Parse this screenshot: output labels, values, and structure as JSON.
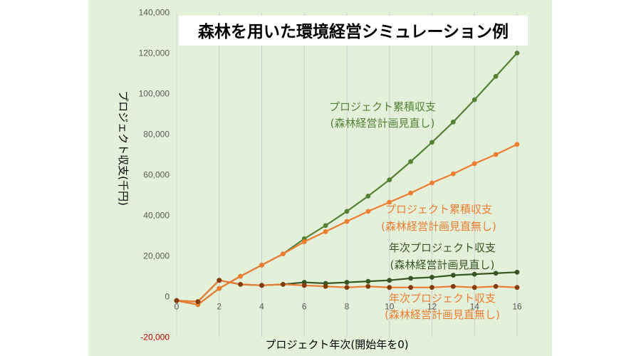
{
  "chart_data": {
    "type": "line",
    "title": "森林を用いた環境経営シミュレーション例",
    "xlabel": "プロジェクト年次(開始年を0)",
    "ylabel": "プロジェクト収支(千円)",
    "xlim": [
      0,
      16
    ],
    "ylim": [
      -20000,
      140000
    ],
    "xticks": [
      "0",
      "2",
      "4",
      "6",
      "8",
      "10",
      "12",
      "14",
      "16"
    ],
    "yticks": [
      "-20,000",
      "0",
      "20,000",
      "40,000",
      "60,000",
      "80,000",
      "100,000",
      "120,000",
      "140,000"
    ],
    "grid": "vertical",
    "legend": "none",
    "x": [
      0,
      1,
      2,
      3,
      4,
      5,
      6,
      7,
      8,
      9,
      10,
      11,
      12,
      13,
      14,
      15,
      16
    ],
    "series": [
      {
        "name": "プロジェクト累積収支(森林経営計画見直し)",
        "label": [
          "プロジェクト累積収支",
          "(森林経営計画見直し)"
        ],
        "color": "#548235",
        "values": [
          -2000,
          -4000,
          4000,
          10000,
          15500,
          21000,
          28500,
          35000,
          42000,
          49500,
          57500,
          66500,
          76000,
          86000,
          97000,
          108500,
          120000
        ]
      },
      {
        "name": "プロジェクト累積収支(森林経営計画見直無し)",
        "label": [
          "プロジェクト累積収支",
          "(森林経営計画見直無し)"
        ],
        "color": "#ed7d31",
        "values": [
          -2000,
          -4000,
          4000,
          10000,
          15500,
          21000,
          27000,
          32000,
          37000,
          42000,
          46500,
          51000,
          56000,
          60500,
          65500,
          70000,
          75000
        ]
      },
      {
        "name": "年次プロジェクト収支(森林経営計画見直し)",
        "label": [
          "年次プロジェクト収支",
          "(森林経営計画見直し)"
        ],
        "color": "#375623",
        "values": [
          -2000,
          -2500,
          8000,
          6000,
          5500,
          6000,
          7000,
          6500,
          7000,
          7500,
          8000,
          9000,
          9500,
          10500,
          11000,
          11500,
          12000
        ]
      },
      {
        "name": "年次プロジェクト収支(森林経営計画見直無し)",
        "label": [
          "年次プロジェクト収支",
          "(森林経営計画見直無し)"
        ],
        "color": "#ed7d31",
        "marker_color": "#843c0c",
        "values": [
          -2000,
          -2500,
          8000,
          6000,
          5500,
          6000,
          5500,
          5000,
          4500,
          5000,
          4500,
          4500,
          4500,
          5000,
          4500,
          5000,
          4500
        ]
      }
    ]
  }
}
